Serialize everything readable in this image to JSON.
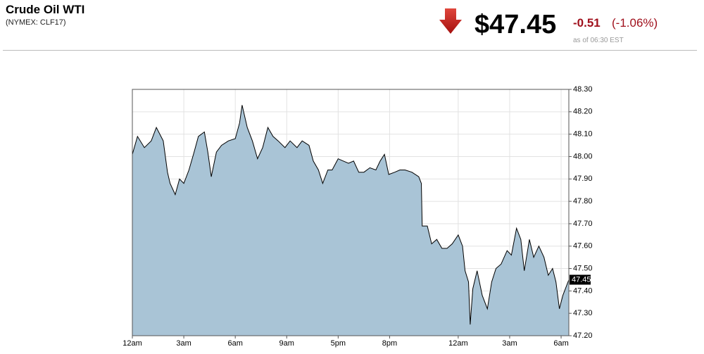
{
  "header": {
    "title": "Crude Oil WTI",
    "subtitle": "(NYMEX: CLF17)",
    "price": "$47.45",
    "change": "-0.51",
    "change_pct": "(-1.06%)",
    "as_of": "as of 06:30 EST"
  },
  "chart_data": {
    "type": "area",
    "color": "#a9c4d6",
    "line_color": "#000000",
    "grid": true,
    "x": [
      0,
      0.3,
      0.7,
      1.1,
      1.4,
      1.8,
      2.05,
      2.2,
      2.5,
      2.75,
      3.0,
      3.3,
      3.6,
      3.85,
      4.2,
      4.4,
      4.6,
      4.9,
      5.2,
      5.6,
      6.0,
      6.25,
      6.4,
      6.7,
      7.0,
      7.3,
      7.6,
      7.9,
      8.2,
      8.5,
      8.9,
      9.2,
      9.6,
      9.9,
      10.3,
      10.55,
      10.85,
      11.1,
      11.4,
      11.65,
      12.0,
      12.3,
      12.6,
      12.9,
      13.2,
      13.5,
      13.85,
      14.2,
      14.45,
      14.7,
      14.95,
      15.3,
      15.6,
      15.9,
      16.3,
      16.7,
      16.85,
      16.9,
      17.2,
      17.45,
      17.75,
      18.05,
      18.35,
      18.65,
      19.0,
      19.25,
      19.4,
      19.6,
      19.7,
      19.85,
      20.1,
      20.4,
      20.7,
      20.95,
      21.2,
      21.5,
      21.85,
      22.1,
      22.4,
      22.65,
      22.85,
      23.15,
      23.4,
      23.7,
      24.0,
      24.25,
      24.5,
      24.7,
      24.9,
      25.1,
      25.45
    ],
    "values": [
      48.01,
      48.09,
      48.04,
      48.07,
      48.13,
      48.07,
      47.93,
      47.88,
      47.83,
      47.9,
      47.88,
      47.94,
      48.02,
      48.09,
      48.11,
      48.02,
      47.91,
      48.02,
      48.05,
      48.07,
      48.08,
      48.15,
      48.23,
      48.13,
      48.07,
      47.99,
      48.04,
      48.13,
      48.09,
      48.07,
      48.04,
      48.07,
      48.04,
      48.07,
      48.05,
      47.98,
      47.94,
      47.88,
      47.94,
      47.94,
      47.99,
      47.98,
      47.97,
      47.98,
      47.93,
      47.93,
      47.95,
      47.94,
      47.98,
      48.01,
      47.92,
      47.93,
      47.94,
      47.94,
      47.93,
      47.91,
      47.88,
      47.69,
      47.69,
      47.61,
      47.63,
      47.59,
      47.59,
      47.61,
      47.65,
      47.6,
      47.49,
      47.44,
      47.25,
      47.41,
      47.49,
      47.38,
      47.32,
      47.44,
      47.5,
      47.52,
      47.58,
      47.56,
      47.68,
      47.63,
      47.49,
      47.63,
      47.55,
      47.6,
      47.55,
      47.47,
      47.5,
      47.44,
      47.32,
      47.38,
      47.45
    ],
    "xlim": [
      0,
      25.45
    ],
    "ylim": [
      47.2,
      48.3
    ],
    "xticks": [
      {
        "value": 0,
        "label": "12am"
      },
      {
        "value": 3,
        "label": "3am"
      },
      {
        "value": 6,
        "label": "6am"
      },
      {
        "value": 9,
        "label": "9am"
      },
      {
        "value": 12,
        "label": "5pm"
      },
      {
        "value": 15,
        "label": "8pm"
      },
      {
        "value": 19,
        "label": "12am"
      },
      {
        "value": 22,
        "label": "3am"
      },
      {
        "value": 25,
        "label": "6am"
      }
    ],
    "yticks": [
      {
        "value": 47.2,
        "label": "47.20"
      },
      {
        "value": 47.3,
        "label": "47.30"
      },
      {
        "value": 47.4,
        "label": "47.40"
      },
      {
        "value": 47.5,
        "label": "47.50"
      },
      {
        "value": 47.6,
        "label": "47.60"
      },
      {
        "value": 47.7,
        "label": "47.70"
      },
      {
        "value": 47.8,
        "label": "47.80"
      },
      {
        "value": 47.9,
        "label": "47.90"
      },
      {
        "value": 48.0,
        "label": "48.00"
      },
      {
        "value": 48.1,
        "label": "48.10"
      },
      {
        "value": 48.2,
        "label": "48.20"
      },
      {
        "value": 48.3,
        "label": "48.30"
      }
    ]
  }
}
